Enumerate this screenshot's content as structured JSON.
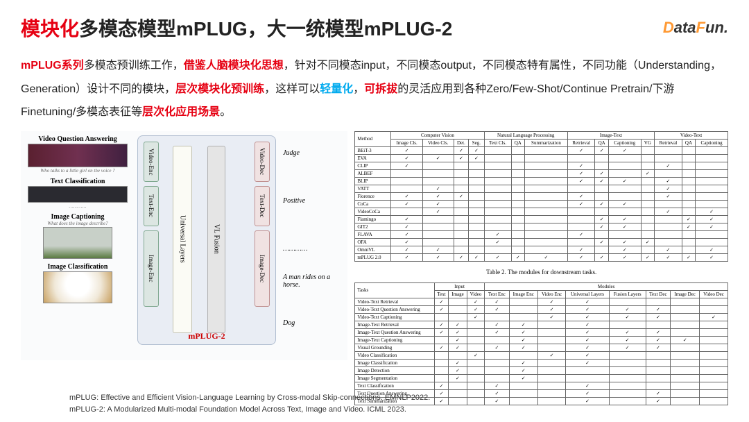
{
  "title": {
    "part1": "模块化",
    "part2": "多模态模型mPLUG，大一统模型mPLUG-2"
  },
  "logo": {
    "d": "D",
    "ata": "ata",
    "f": "F",
    "un": "un."
  },
  "desc": {
    "s1a": "mPLUG系列",
    "s1b": "多模态预训练工作，",
    "s2": "借鉴人脑模块化思想",
    "s3": "，针对不同模态input，不同模态output，不同模态特有属性，不同功能（Understanding，Generation）设计不同的模块，",
    "s4": "层次模块化预训练",
    "s5": "，这样可以",
    "s6": "轻量化",
    "s7": "，",
    "s8": "可拆拔",
    "s9": "的灵活应用到各种Zero/Few-Shot/Continue Pretrain/下游Finetuning/多模态表征等",
    "s10": "层次化应用场景",
    "s11": "。"
  },
  "diagram": {
    "tasks": [
      {
        "label": "Video Question Answering",
        "q": "Who talks to a little girl on the voice ?"
      },
      {
        "label": "Text Classification",
        "q": "at achieving the modest, crowd-pleasing goals it sets for itself"
      },
      {
        "label": "Image Captioning",
        "q": "What does the image describe?"
      },
      {
        "label": "Image Classification",
        "q": ""
      }
    ],
    "encoders": [
      "Video-Enc",
      "Text-Enc",
      "Image-Enc"
    ],
    "universal": "Universal Layers",
    "vlfusion": "VL Fusion",
    "decoders": [
      "Video-Dec",
      "Text-Dec",
      "Image-Dec"
    ],
    "model_label": "mPLUG-2",
    "outputs": [
      "Judge",
      "Positive",
      "A man rides on a horse.",
      "Dog"
    ],
    "dots": "…………",
    "colors": {
      "video": "#c05090",
      "text": "#4a9a4a",
      "image": "#d08830",
      "enc_bg": "#dce6e2",
      "dec_bg": "#f0e2e2",
      "box_bg": "#e9edf4",
      "ul_bg": "#fbfbf5",
      "vl_bg": "#e5e5e5"
    }
  },
  "table1": {
    "groups": [
      "Computer Vision",
      "Natural Language Processing",
      "Image-Text",
      "Video-Text"
    ],
    "cols": [
      "Method",
      "Image Cls.",
      "Video Cls.",
      "Det.",
      "Seg.",
      "Text Cls.",
      "QA",
      "Summarization",
      "Retrieval",
      "QA",
      "Captioning",
      "VG",
      "Retrieval",
      "QA",
      "Captioning"
    ],
    "rows": [
      [
        "BEiT-3",
        "✓",
        "",
        "✓",
        "✓",
        "",
        "",
        "",
        "✓",
        "✓",
        "✓",
        "",
        "",
        "",
        ""
      ],
      [
        "EVA",
        "✓",
        "✓",
        "✓",
        "✓",
        "",
        "",
        "",
        "",
        "",
        "",
        "",
        "",
        "",
        ""
      ],
      [
        "CLIP",
        "✓",
        "",
        "",
        "",
        "",
        "",
        "",
        "✓",
        "",
        "",
        "",
        "✓",
        "",
        ""
      ],
      [
        "ALBEF",
        "",
        "",
        "",
        "",
        "",
        "",
        "",
        "✓",
        "✓",
        "",
        "✓",
        "",
        "",
        ""
      ],
      [
        "BLIP",
        "",
        "",
        "",
        "",
        "",
        "",
        "",
        "✓",
        "✓",
        "✓",
        "",
        "✓",
        "",
        ""
      ],
      [
        "VATT",
        "",
        "✓",
        "",
        "",
        "",
        "",
        "",
        "",
        "",
        "",
        "",
        "✓",
        "",
        ""
      ],
      [
        "Florence",
        "✓",
        "✓",
        "✓",
        "",
        "",
        "",
        "",
        "✓",
        "",
        "",
        "",
        "✓",
        "",
        ""
      ],
      [
        "CoCa",
        "✓",
        "✓",
        "",
        "",
        "",
        "",
        "",
        "✓",
        "✓",
        "✓",
        "",
        "",
        "",
        ""
      ],
      [
        "VideoCoCa",
        "",
        "✓",
        "",
        "",
        "",
        "",
        "",
        "",
        "",
        "",
        "",
        "✓",
        "",
        "✓"
      ],
      [
        "Flamingo",
        "✓",
        "",
        "",
        "",
        "",
        "",
        "",
        "",
        "✓",
        "✓",
        "",
        "",
        "✓",
        "✓"
      ],
      [
        "GIT2",
        "✓",
        "",
        "",
        "",
        "",
        "",
        "",
        "",
        "✓",
        "✓",
        "",
        "",
        "✓",
        "✓"
      ],
      [
        "FLAVA",
        "✓",
        "",
        "",
        "",
        "✓",
        "",
        "",
        "✓",
        "",
        "",
        "",
        "",
        "",
        ""
      ],
      [
        "OFA",
        "✓",
        "",
        "",
        "",
        "✓",
        "",
        "",
        "",
        "✓",
        "✓",
        "✓",
        "",
        "",
        ""
      ],
      [
        "OmniVL",
        "✓",
        "✓",
        "",
        "",
        "",
        "",
        "",
        "✓",
        "",
        "✓",
        "",
        "✓",
        "",
        "✓"
      ],
      [
        "mPLUG 2.0",
        "✓",
        "✓",
        "✓",
        "✓",
        "✓",
        "✓",
        "✓",
        "✓",
        "✓",
        "✓",
        "✓",
        "✓",
        "✓",
        "✓"
      ]
    ]
  },
  "table2": {
    "title": "Table 2. The modules for downstream tasks.",
    "groups": [
      "Input",
      "Modules"
    ],
    "cols": [
      "Tasks",
      "Text",
      "Image",
      "Video",
      "Text Enc",
      "Image Enc",
      "Video Enc",
      "Universal Layers",
      "Fusion Layers",
      "Text Dec",
      "Image Dec",
      "Video Dec"
    ],
    "rows": [
      [
        "Video-Text Retrieval",
        "✓",
        "",
        "✓",
        "✓",
        "",
        "✓",
        "✓",
        "",
        "",
        "",
        ""
      ],
      [
        "Video-Text Question Answering",
        "✓",
        "",
        "✓",
        "✓",
        "",
        "✓",
        "✓",
        "✓",
        "✓",
        "",
        ""
      ],
      [
        "Video-Text Captioning",
        "",
        "",
        "✓",
        "",
        "",
        "✓",
        "✓",
        "✓",
        "✓",
        "",
        "✓"
      ],
      [
        "Image-Text Retrieval",
        "✓",
        "✓",
        "",
        "✓",
        "✓",
        "",
        "✓",
        "",
        "",
        "",
        ""
      ],
      [
        "Image-Text Question Answering",
        "✓",
        "✓",
        "",
        "✓",
        "✓",
        "",
        "✓",
        "✓",
        "✓",
        "",
        ""
      ],
      [
        "Image-Text Captioning",
        "",
        "✓",
        "",
        "",
        "✓",
        "",
        "✓",
        "✓",
        "✓",
        "✓",
        ""
      ],
      [
        "Visual Grounding",
        "✓",
        "✓",
        "",
        "✓",
        "✓",
        "",
        "✓",
        "✓",
        "✓",
        "",
        ""
      ],
      [
        "Video Classification",
        "",
        "",
        "✓",
        "",
        "",
        "✓",
        "✓",
        "",
        "",
        "",
        ""
      ],
      [
        "Image Classification",
        "",
        "✓",
        "",
        "",
        "✓",
        "",
        "✓",
        "",
        "",
        "",
        ""
      ],
      [
        "Image Detection",
        "",
        "✓",
        "",
        "",
        "✓",
        "",
        "",
        "",
        "",
        "",
        ""
      ],
      [
        "Image Segmentation",
        "",
        "✓",
        "",
        "",
        "✓",
        "",
        "",
        "",
        "",
        "",
        ""
      ],
      [
        "Text Classification",
        "✓",
        "",
        "",
        "✓",
        "",
        "",
        "✓",
        "",
        "",
        "",
        ""
      ],
      [
        "Text Question Answering",
        "✓",
        "",
        "",
        "✓",
        "",
        "",
        "✓",
        "",
        "✓",
        "",
        ""
      ],
      [
        "Text Summarization",
        "✓",
        "",
        "",
        "✓",
        "",
        "",
        "✓",
        "",
        "✓",
        "",
        ""
      ]
    ]
  },
  "refs": {
    "r1": "mPLUG: Effective and Efficient Vision-Language Learning by Cross-modal Skip-connections. EMNLP2022.",
    "r2": "mPLUG-2: A Modularized Multi-modal Foundation Model Across Text, Image and Video. ICML 2023."
  }
}
